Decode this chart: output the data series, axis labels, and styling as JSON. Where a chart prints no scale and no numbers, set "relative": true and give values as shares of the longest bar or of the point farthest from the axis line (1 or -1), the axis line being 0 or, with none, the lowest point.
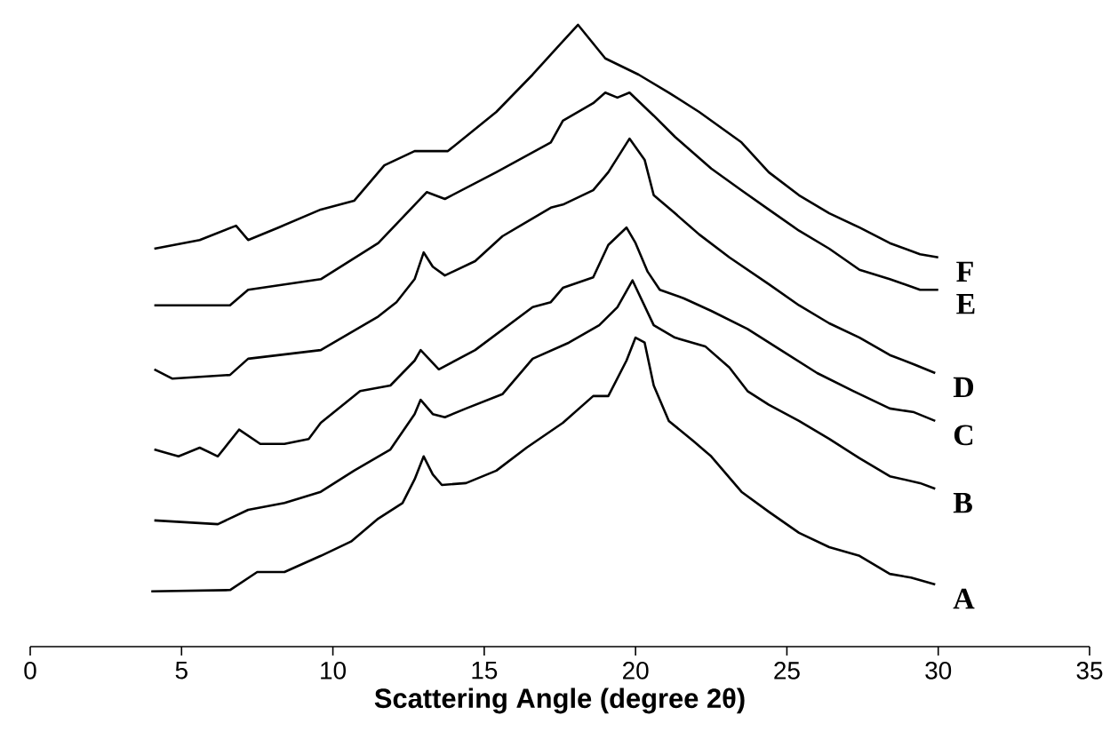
{
  "chart_data": {
    "type": "line",
    "relative": true,
    "xlabel": "Scattering Angle (degree 2θ)",
    "xlim": [
      0,
      35
    ],
    "xticks": [
      0,
      5,
      10,
      15,
      20,
      25,
      30,
      35
    ],
    "series": [
      {
        "name": "A",
        "color": "#000000",
        "x": [
          4.0,
          6.6,
          7.5,
          8.4,
          9.6,
          10.6,
          11.5,
          12.3,
          12.7,
          13.0,
          13.3,
          13.6,
          14.4,
          15.4,
          16.4,
          17.6,
          18.6,
          19.1,
          19.7,
          20.0,
          20.3,
          20.6,
          21.1,
          21.9,
          22.5,
          23.5,
          24.4,
          25.4,
          26.4,
          27.4,
          28.4,
          29.1,
          29.9
        ],
        "values": [
          0.089,
          0.091,
          0.12,
          0.12,
          0.146,
          0.169,
          0.206,
          0.231,
          0.269,
          0.306,
          0.277,
          0.26,
          0.263,
          0.283,
          0.32,
          0.36,
          0.403,
          0.403,
          0.46,
          0.497,
          0.489,
          0.42,
          0.363,
          0.331,
          0.306,
          0.249,
          0.217,
          0.183,
          0.16,
          0.146,
          0.117,
          0.111,
          0.1
        ]
      },
      {
        "name": "B",
        "color": "#000000",
        "x": [
          4.1,
          6.2,
          7.2,
          8.4,
          9.6,
          10.7,
          11.9,
          12.7,
          12.9,
          13.3,
          13.7,
          14.4,
          15.6,
          16.6,
          17.8,
          18.8,
          19.4,
          19.9,
          20.6,
          21.3,
          22.3,
          23.1,
          23.7,
          24.4,
          25.4,
          26.4,
          27.4,
          28.4,
          29.4,
          29.9
        ],
        "values": [
          0.203,
          0.197,
          0.22,
          0.231,
          0.249,
          0.283,
          0.317,
          0.374,
          0.397,
          0.374,
          0.369,
          0.383,
          0.406,
          0.463,
          0.489,
          0.517,
          0.546,
          0.589,
          0.517,
          0.497,
          0.483,
          0.449,
          0.411,
          0.389,
          0.363,
          0.334,
          0.303,
          0.274,
          0.263,
          0.254
        ]
      },
      {
        "name": "C",
        "color": "#000000",
        "x": [
          4.1,
          4.9,
          5.6,
          6.2,
          6.9,
          7.6,
          8.4,
          9.2,
          9.6,
          10.9,
          11.9,
          12.7,
          12.9,
          13.5,
          14.7,
          16.6,
          17.2,
          17.6,
          18.6,
          19.1,
          19.7,
          20.0,
          20.4,
          20.8,
          21.6,
          22.5,
          23.7,
          24.8,
          26.0,
          27.2,
          28.4,
          29.2,
          29.9
        ],
        "values": [
          0.317,
          0.306,
          0.32,
          0.306,
          0.349,
          0.326,
          0.326,
          0.334,
          0.36,
          0.411,
          0.42,
          0.46,
          0.477,
          0.446,
          0.477,
          0.546,
          0.554,
          0.577,
          0.594,
          0.646,
          0.674,
          0.649,
          0.603,
          0.574,
          0.56,
          0.54,
          0.511,
          0.477,
          0.44,
          0.411,
          0.383,
          0.377,
          0.363
        ]
      },
      {
        "name": "D",
        "color": "#000000",
        "x": [
          4.1,
          4.7,
          6.6,
          7.2,
          9.6,
          11.5,
          12.1,
          12.7,
          13.0,
          13.3,
          13.7,
          14.7,
          15.6,
          17.2,
          17.6,
          18.6,
          19.1,
          19.8,
          20.3,
          20.6,
          21.3,
          22.1,
          23.1,
          24.4,
          25.4,
          26.4,
          27.4,
          28.4,
          29.2,
          29.9
        ],
        "values": [
          0.446,
          0.431,
          0.437,
          0.463,
          0.477,
          0.531,
          0.554,
          0.591,
          0.634,
          0.611,
          0.597,
          0.62,
          0.66,
          0.706,
          0.711,
          0.734,
          0.763,
          0.817,
          0.783,
          0.726,
          0.697,
          0.663,
          0.626,
          0.583,
          0.549,
          0.52,
          0.497,
          0.469,
          0.454,
          0.44
        ]
      },
      {
        "name": "E",
        "color": "#000000",
        "x": [
          4.1,
          6.6,
          7.2,
          9.6,
          11.5,
          13.1,
          13.7,
          15.4,
          17.2,
          17.6,
          18.6,
          19.0,
          19.4,
          19.8,
          20.6,
          21.3,
          22.5,
          23.5,
          24.4,
          25.4,
          26.4,
          27.4,
          28.4,
          29.4,
          30.0
        ],
        "values": [
          0.549,
          0.549,
          0.574,
          0.591,
          0.649,
          0.731,
          0.72,
          0.763,
          0.811,
          0.846,
          0.874,
          0.891,
          0.883,
          0.891,
          0.854,
          0.82,
          0.769,
          0.734,
          0.703,
          0.669,
          0.64,
          0.606,
          0.591,
          0.574,
          0.574
        ]
      },
      {
        "name": "F",
        "color": "#000000",
        "x": [
          4.1,
          5.6,
          6.8,
          7.2,
          8.2,
          9.6,
          10.7,
          11.7,
          12.7,
          13.8,
          15.4,
          16.6,
          17.4,
          18.1,
          19.0,
          20.1,
          21.1,
          22.1,
          23.5,
          24.4,
          25.4,
          26.4,
          27.4,
          28.4,
          29.4,
          30.0
        ],
        "values": [
          0.64,
          0.654,
          0.677,
          0.654,
          0.674,
          0.703,
          0.717,
          0.774,
          0.797,
          0.797,
          0.86,
          0.92,
          0.963,
          1.0,
          0.946,
          0.92,
          0.891,
          0.86,
          0.811,
          0.763,
          0.726,
          0.697,
          0.674,
          0.649,
          0.631,
          0.626
        ]
      }
    ]
  }
}
